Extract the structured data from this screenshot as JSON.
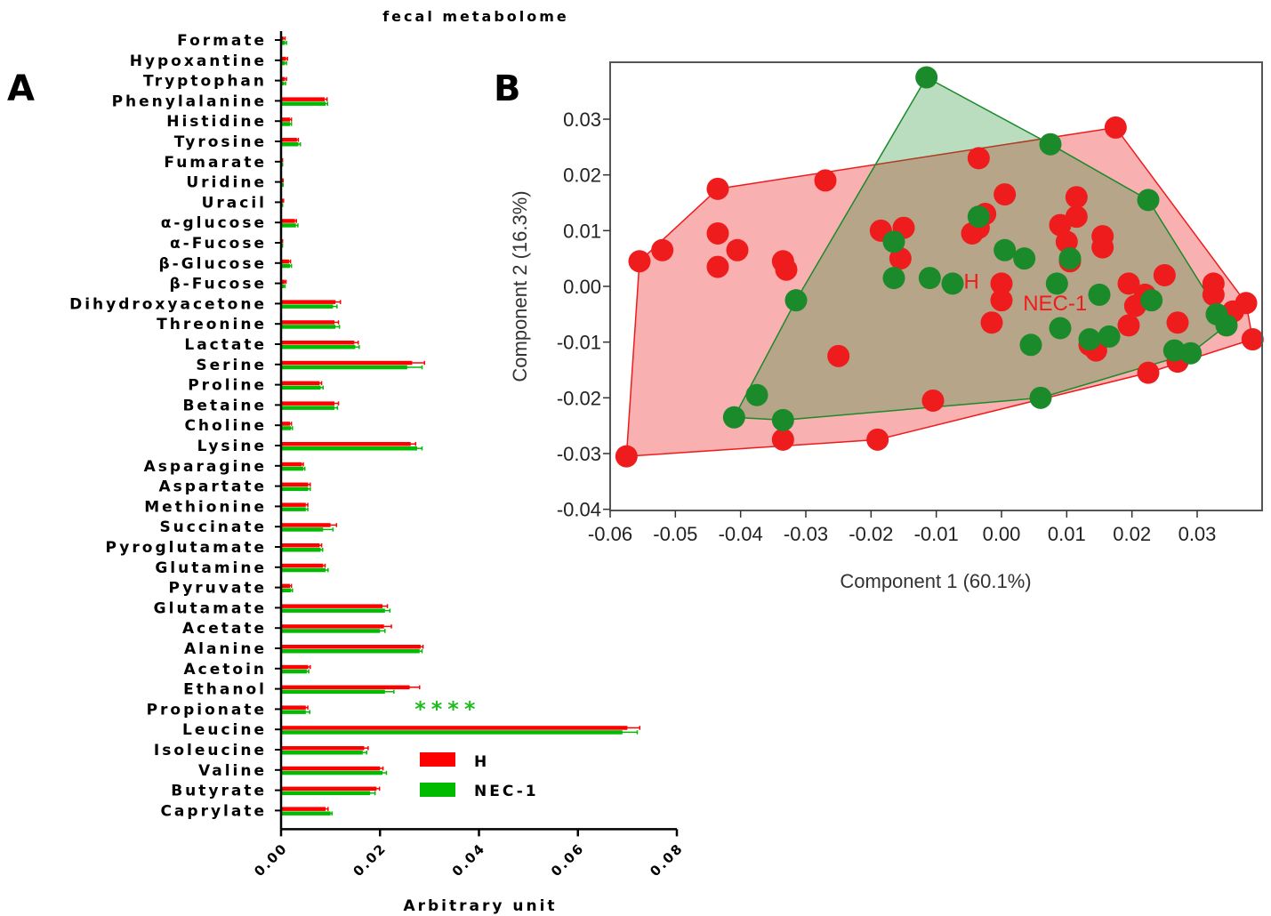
{
  "figure": {
    "title": "fecal metabolome",
    "panel_a_letter": "A",
    "panel_b_letter": "B"
  },
  "colors": {
    "H": "#ff0000",
    "NEC1": "#00bb00",
    "H_pca": "#ee1c1c",
    "NEC1_pca": "#1b8a2a",
    "stars": "#22bb22"
  },
  "chart_data": [
    {
      "type": "bar",
      "orientation": "horizontal",
      "title": "fecal metabolome",
      "xlabel": "Arbitrary unit",
      "ylabel": "",
      "xlim": [
        0,
        0.08
      ],
      "xticks": [
        "0.00",
        "0.02",
        "0.04",
        "0.06",
        "0.08"
      ],
      "xtick_values": [
        0,
        0.02,
        0.04,
        0.06,
        0.08
      ],
      "categories": [
        "Formate",
        "Hypoxantine",
        "Tryptophan",
        "Phenylalanine",
        "Histidine",
        "Tyrosine",
        "Fumarate",
        "Uridine",
        "Uracil",
        "α-glucose",
        "α-Fucose",
        "β-Glucose",
        "β-Fucose",
        "Dihydroxyacetone",
        "Threonine",
        "Lactate",
        "Serine",
        "Proline",
        "Betaine",
        "Choline",
        "Lysine",
        "Asparagine",
        "Aspartate",
        "Methionine",
        "Succinate",
        "Pyroglutamate",
        "Glutamine",
        "Pyruvate",
        "Glutamate",
        "Acetate",
        "Alanine",
        "Acetoin",
        "Ethanol",
        "Propionate",
        "Leucine",
        "Isoleucine",
        "Valine",
        "Butyrate",
        "Caprylate"
      ],
      "series": [
        {
          "name": "H",
          "values": [
            0.0005,
            0.001,
            0.0008,
            0.0088,
            0.0018,
            0.0032,
            0.0002,
            0.0003,
            0.0004,
            0.0028,
            0.0002,
            0.0016,
            0.0008,
            0.011,
            0.0108,
            0.0148,
            0.0265,
            0.0078,
            0.0108,
            0.0018,
            0.0262,
            0.0042,
            0.0055,
            0.005,
            0.01,
            0.0078,
            0.0085,
            0.0018,
            0.0205,
            0.0208,
            0.0282,
            0.0055,
            0.026,
            0.005,
            0.07,
            0.0168,
            0.02,
            0.0193,
            0.009
          ],
          "errors": [
            0.0003,
            0.0003,
            0.0003,
            0.0005,
            0.0003,
            0.0003,
            0.0001,
            0.0001,
            0.0001,
            0.0003,
            0.0001,
            0.0003,
            0.0002,
            0.001,
            0.0008,
            0.0008,
            0.0025,
            0.0004,
            0.0008,
            0.0003,
            0.001,
            0.0003,
            0.0004,
            0.0004,
            0.0012,
            0.0004,
            0.0004,
            0.0003,
            0.001,
            0.0015,
            0.0005,
            0.0004,
            0.002,
            0.0004,
            0.0025,
            0.0008,
            0.0006,
            0.0006,
            0.0005
          ]
        },
        {
          "name": "NEC-1",
          "values": [
            0.0008,
            0.0008,
            0.0006,
            0.009,
            0.0018,
            0.0035,
            0.0002,
            0.0003,
            0.0002,
            0.003,
            0.0002,
            0.0018,
            0.0006,
            0.0105,
            0.011,
            0.015,
            0.0255,
            0.008,
            0.0108,
            0.002,
            0.0275,
            0.0045,
            0.0055,
            0.005,
            0.0085,
            0.008,
            0.009,
            0.002,
            0.021,
            0.02,
            0.028,
            0.0052,
            0.021,
            0.005,
            0.069,
            0.0165,
            0.0205,
            0.018,
            0.01
          ],
          "errors": [
            0.0003,
            0.0003,
            0.0003,
            0.0004,
            0.0003,
            0.0004,
            0.0001,
            0.0001,
            0.0001,
            0.0004,
            0.0001,
            0.0003,
            0.0002,
            0.0008,
            0.0008,
            0.0008,
            0.003,
            0.0005,
            0.0006,
            0.0003,
            0.001,
            0.0003,
            0.0004,
            0.0004,
            0.002,
            0.0004,
            0.0005,
            0.0003,
            0.001,
            0.001,
            0.0005,
            0.0004,
            0.0018,
            0.0008,
            0.003,
            0.0008,
            0.0008,
            0.001,
            0.0003
          ]
        }
      ],
      "annotations": [
        {
          "text": "****",
          "category": "Propionate",
          "x": 0.027
        }
      ],
      "legend": {
        "placement": "bottom-right",
        "entries": [
          "H",
          "NEC-1"
        ]
      }
    },
    {
      "type": "scatter",
      "xlabel": "Component 1 (60.1%)",
      "ylabel": "Component 2 (16.3%)",
      "xlim": [
        -0.06,
        0.04
      ],
      "ylim": [
        -0.04,
        0.04
      ],
      "xticks": [
        "-0.06",
        "-0.05",
        "-0.04",
        "-0.03",
        "-0.02",
        "-0.01",
        "0.00",
        "0.01",
        "0.02",
        "0.03"
      ],
      "xtick_values": [
        -0.06,
        -0.05,
        -0.04,
        -0.03,
        -0.02,
        -0.01,
        0.0,
        0.01,
        0.02,
        0.03
      ],
      "yticks": [
        "0.03",
        "0.02",
        "0.01",
        "0.00",
        "-0.01",
        "-0.02",
        "-0.03",
        "-0.04"
      ],
      "ytick_values": [
        0.03,
        0.02,
        0.01,
        0.0,
        -0.01,
        -0.02,
        -0.03,
        -0.04
      ],
      "grid": false,
      "hull_labels": [
        "H",
        "NEC-1"
      ],
      "series": [
        {
          "name": "H",
          "hull": true,
          "points": [
            [
              -0.0575,
              -0.0305
            ],
            [
              -0.0555,
              0.0045
            ],
            [
              -0.052,
              0.0065
            ],
            [
              -0.0435,
              0.0175
            ],
            [
              -0.0435,
              0.0095
            ],
            [
              -0.0435,
              0.0035
            ],
            [
              -0.0405,
              0.0065
            ],
            [
              -0.0335,
              0.0045
            ],
            [
              -0.0335,
              -0.0275
            ],
            [
              -0.033,
              0.003
            ],
            [
              -0.027,
              0.019
            ],
            [
              -0.025,
              -0.0125
            ],
            [
              -0.019,
              -0.0275
            ],
            [
              -0.0185,
              0.01
            ],
            [
              -0.0155,
              0.005
            ],
            [
              -0.015,
              0.0105
            ],
            [
              -0.0105,
              -0.0205
            ],
            [
              -0.0045,
              0.0095
            ],
            [
              -0.0035,
              0.0105
            ],
            [
              -0.0035,
              0.023
            ],
            [
              -0.0025,
              0.013
            ],
            [
              0.0005,
              0.0165
            ],
            [
              -0.0015,
              -0.0065
            ],
            [
              0.0,
              0.0005
            ],
            [
              0.0,
              -0.0025
            ],
            [
              0.009,
              0.011
            ],
            [
              0.01,
              0.008
            ],
            [
              0.0105,
              0.0045
            ],
            [
              0.0115,
              0.016
            ],
            [
              0.0115,
              0.0125
            ],
            [
              0.0135,
              -0.0105
            ],
            [
              0.0145,
              -0.0115
            ],
            [
              0.0155,
              0.009
            ],
            [
              0.0155,
              0.007
            ],
            [
              0.0175,
              0.0285
            ],
            [
              0.0195,
              -0.007
            ],
            [
              0.0195,
              0.0005
            ],
            [
              0.0205,
              -0.0035
            ],
            [
              0.022,
              -0.0015
            ],
            [
              0.0225,
              -0.0155
            ],
            [
              0.025,
              0.002
            ],
            [
              0.027,
              -0.0065
            ],
            [
              0.027,
              -0.0135
            ],
            [
              0.0325,
              0.0005
            ],
            [
              0.0325,
              -0.0015
            ],
            [
              0.0355,
              -0.0045
            ],
            [
              0.0375,
              -0.003
            ],
            [
              0.0385,
              -0.0095
            ]
          ]
        },
        {
          "name": "NEC-1",
          "hull": true,
          "points": [
            [
              -0.041,
              -0.0235
            ],
            [
              -0.0375,
              -0.0195
            ],
            [
              -0.0335,
              -0.024
            ],
            [
              -0.0315,
              -0.0025
            ],
            [
              -0.0165,
              0.0015
            ],
            [
              -0.0165,
              0.008
            ],
            [
              -0.0115,
              0.0375
            ],
            [
              -0.011,
              0.0015
            ],
            [
              -0.0075,
              0.0005
            ],
            [
              -0.0035,
              0.0125
            ],
            [
              0.0005,
              0.0065
            ],
            [
              0.0035,
              0.005
            ],
            [
              0.0045,
              -0.0105
            ],
            [
              0.0075,
              0.0255
            ],
            [
              0.006,
              -0.02
            ],
            [
              0.0085,
              0.0005
            ],
            [
              0.009,
              -0.0075
            ],
            [
              0.0105,
              0.005
            ],
            [
              0.0135,
              -0.0095
            ],
            [
              0.015,
              -0.0015
            ],
            [
              0.0165,
              -0.009
            ],
            [
              0.0225,
              0.0155
            ],
            [
              0.023,
              -0.0025
            ],
            [
              0.0265,
              -0.0115
            ],
            [
              0.029,
              -0.012
            ],
            [
              0.033,
              -0.005
            ],
            [
              0.0345,
              -0.007
            ]
          ]
        }
      ]
    }
  ],
  "legend_a": {
    "h_label": "H",
    "nec1_label": "NEC-1"
  },
  "pca_labels": {
    "h": "H",
    "nec1": "NEC-1"
  }
}
